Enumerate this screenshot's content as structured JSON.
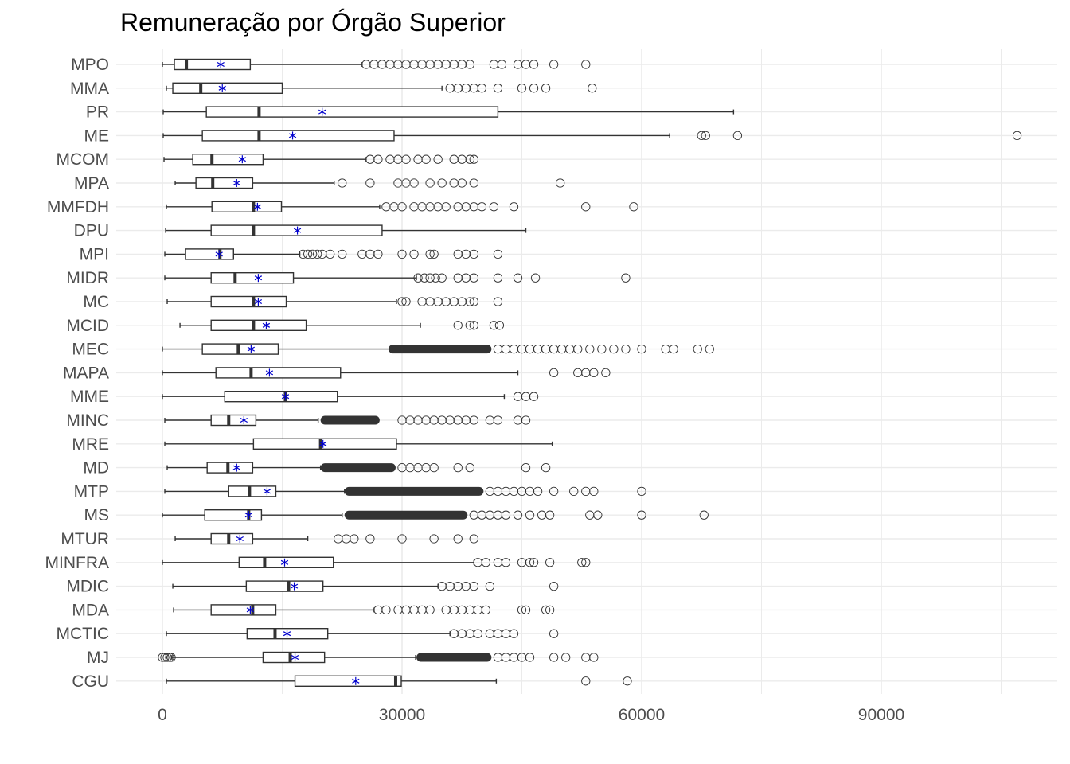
{
  "chart_data": {
    "type": "boxplot",
    "title": "Remuneração por Órgão Superior",
    "xlabel": "",
    "ylabel": "",
    "xlim": [
      -5000,
      112000
    ],
    "x_ticks": [
      0,
      30000,
      60000,
      90000
    ],
    "x_tick_labels": [
      "0",
      "30000",
      "60000",
      "90000"
    ],
    "grid": true,
    "orientation": "horizontal",
    "colors": {
      "box": "#333333",
      "mean": "#0000cd",
      "grid": "#ebebeb",
      "text": "#4d4d4d"
    },
    "categories": [
      "MPO",
      "MMA",
      "PR",
      "ME",
      "MCOM",
      "MPA",
      "MMFDH",
      "DPU",
      "MPI",
      "MIDR",
      "MC",
      "MCID",
      "MEC",
      "MAPA",
      "MME",
      "MINC",
      "MRE",
      "MD",
      "MTP",
      "MS",
      "MTUR",
      "MINFRA",
      "MDIC",
      "MDA",
      "MCTIC",
      "MJ",
      "CGU"
    ],
    "series": [
      {
        "category": "MPO",
        "min": 0,
        "q1": 1500,
        "median": 3000,
        "q3": 11000,
        "max": 25000,
        "mean": 7300,
        "outliers": [
          25500,
          26500,
          27500,
          28500,
          29500,
          30500,
          31500,
          32500,
          33500,
          34500,
          35500,
          36500,
          37500,
          38500,
          41500,
          42500,
          44500,
          45500,
          46500,
          49000,
          53000
        ]
      },
      {
        "category": "MMA",
        "min": 500,
        "q1": 1300,
        "median": 4800,
        "q3": 15000,
        "max": 35000,
        "mean": 7500,
        "outliers": [
          36000,
          37000,
          38000,
          39000,
          40000,
          42000,
          45000,
          46500,
          48000,
          53800
        ]
      },
      {
        "category": "PR",
        "min": 100,
        "q1": 5500,
        "median": 12100,
        "q3": 42000,
        "max": 71500,
        "mean": 20000,
        "outliers": []
      },
      {
        "category": "ME",
        "min": 100,
        "q1": 5000,
        "median": 12100,
        "q3": 29000,
        "max": 63500,
        "mean": 16300,
        "outliers": [
          67500,
          68000,
          72000,
          107000
        ]
      },
      {
        "category": "MCOM",
        "min": 200,
        "q1": 3800,
        "median": 6200,
        "q3": 12600,
        "max": 25500,
        "mean": 10000,
        "outliers": [
          26000,
          27000,
          28500,
          29500,
          30500,
          32000,
          33000,
          34500,
          36500,
          37500,
          38500,
          39000
        ]
      },
      {
        "category": "MPA",
        "min": 1600,
        "q1": 4200,
        "median": 6300,
        "q3": 11300,
        "max": 21500,
        "mean": 9300,
        "outliers": [
          22500,
          26000,
          29500,
          30500,
          31500,
          33500,
          35000,
          36500,
          37500,
          39000,
          49800
        ]
      },
      {
        "category": "MMFDH",
        "min": 500,
        "q1": 6200,
        "median": 11400,
        "q3": 14900,
        "max": 27200,
        "mean": 11900,
        "outliers": [
          28000,
          29000,
          30000,
          31500,
          32500,
          33500,
          34500,
          35500,
          37000,
          38000,
          39000,
          40000,
          41500,
          44000,
          53000,
          59000
        ]
      },
      {
        "category": "DPU",
        "min": 400,
        "q1": 6100,
        "median": 11400,
        "q3": 27500,
        "max": 45500,
        "mean": 16900,
        "outliers": []
      },
      {
        "category": "MPI",
        "min": 300,
        "q1": 2900,
        "median": 7200,
        "q3": 8900,
        "max": 17200,
        "mean": 7100,
        "outliers": [
          17600,
          18200,
          18800,
          19400,
          20000,
          21000,
          22500,
          25000,
          26000,
          27000,
          30000,
          31500,
          33500,
          34000,
          37000,
          38000,
          39000,
          42000
        ]
      },
      {
        "category": "MIDR",
        "min": 300,
        "q1": 6100,
        "median": 9100,
        "q3": 16400,
        "max": 31800,
        "mean": 12000,
        "outliers": [
          32000,
          32800,
          33500,
          34200,
          35000,
          37000,
          38000,
          39000,
          42000,
          44500,
          46700,
          58000
        ]
      },
      {
        "category": "MC",
        "min": 600,
        "q1": 6100,
        "median": 11400,
        "q3": 15500,
        "max": 29300,
        "mean": 12000,
        "outliers": [
          30000,
          30500,
          32500,
          33500,
          34500,
          35500,
          36500,
          37500,
          38500,
          39000,
          42000
        ]
      },
      {
        "category": "MCID",
        "min": 2200,
        "q1": 6100,
        "median": 11400,
        "q3": 18000,
        "max": 32300,
        "mean": 13000,
        "outliers": [
          37000,
          38500,
          39000,
          41500,
          42200
        ]
      },
      {
        "category": "MEC",
        "min": 0,
        "q1": 5000,
        "median": 9500,
        "q3": 14500,
        "max": 28500,
        "mean": 11100,
        "dense_range": [
          28500,
          41000
        ],
        "outliers": [
          42000,
          43000,
          44000,
          45000,
          46000,
          47000,
          48000,
          49000,
          50000,
          51000,
          52000,
          53500,
          55000,
          56500,
          58000,
          60000,
          63000,
          64000,
          67000,
          68500
        ]
      },
      {
        "category": "MAPA",
        "min": 0,
        "q1": 6700,
        "median": 11100,
        "q3": 22300,
        "max": 44500,
        "mean": 13400,
        "outliers": [
          49000,
          52000,
          53000,
          54000,
          55500
        ]
      },
      {
        "category": "MME",
        "min": 0,
        "q1": 7800,
        "median": 15400,
        "q3": 21900,
        "max": 42800,
        "mean": 15400,
        "outliers": [
          44500,
          45500,
          46500
        ]
      },
      {
        "category": "MINC",
        "min": 300,
        "q1": 6100,
        "median": 8300,
        "q3": 11700,
        "max": 19500,
        "mean": 10200,
        "dense_range": [
          20000,
          27000
        ],
        "outliers": [
          30000,
          31000,
          32000,
          33000,
          34000,
          35000,
          36000,
          37000,
          38000,
          39000,
          41000,
          42000,
          44500,
          45500
        ]
      },
      {
        "category": "MRE",
        "min": 300,
        "q1": 11400,
        "median": 19800,
        "q3": 29300,
        "max": 48800,
        "mean": 20100,
        "outliers": []
      },
      {
        "category": "MD",
        "min": 600,
        "q1": 5600,
        "median": 8200,
        "q3": 11300,
        "max": 19800,
        "mean": 9300,
        "dense_range": [
          20000,
          29000
        ],
        "outliers": [
          30000,
          31000,
          32000,
          33000,
          34000,
          37000,
          38500,
          45500,
          48000
        ]
      },
      {
        "category": "MTP",
        "min": 300,
        "q1": 8300,
        "median": 10900,
        "q3": 14200,
        "max": 22800,
        "mean": 13100,
        "dense_range": [
          23000,
          40000
        ],
        "outliers": [
          41000,
          42000,
          43000,
          44000,
          45000,
          46000,
          47000,
          49000,
          51500,
          53000,
          54000,
          60000
        ]
      },
      {
        "category": "MS",
        "min": 0,
        "q1": 5300,
        "median": 10800,
        "q3": 12400,
        "max": 22500,
        "mean": 10800,
        "dense_range": [
          23000,
          38000
        ],
        "outliers": [
          39000,
          40000,
          41000,
          42000,
          43000,
          44500,
          46000,
          47500,
          48500,
          53500,
          54500,
          60000,
          67800
        ]
      },
      {
        "category": "MTUR",
        "min": 1600,
        "q1": 6100,
        "median": 8300,
        "q3": 11300,
        "max": 18200,
        "mean": 9700,
        "outliers": [
          22000,
          23000,
          24000,
          26000,
          30000,
          34000,
          37000,
          39000
        ]
      },
      {
        "category": "MINFRA",
        "min": 0,
        "q1": 9600,
        "median": 12800,
        "q3": 21400,
        "max": 39000,
        "mean": 15300,
        "outliers": [
          39500,
          40500,
          42000,
          43000,
          45000,
          46000,
          46500,
          48500,
          52500,
          53000
        ]
      },
      {
        "category": "MDIC",
        "min": 1300,
        "q1": 10500,
        "median": 15800,
        "q3": 20100,
        "max": 34500,
        "mean": 16500,
        "outliers": [
          35000,
          36000,
          37000,
          38000,
          39000,
          41000,
          49000
        ]
      },
      {
        "category": "MDA",
        "min": 1400,
        "q1": 6100,
        "median": 11300,
        "q3": 14200,
        "max": 26500,
        "mean": 11000,
        "outliers": [
          27000,
          28000,
          29500,
          30500,
          31500,
          32500,
          33500,
          35500,
          36500,
          37500,
          38500,
          39500,
          40500,
          45000,
          45500,
          48000,
          48500
        ]
      },
      {
        "category": "MCTIC",
        "min": 500,
        "q1": 10600,
        "median": 14100,
        "q3": 20700,
        "max": 36000,
        "mean": 15600,
        "outliers": [
          36500,
          37500,
          38500,
          39500,
          41000,
          42000,
          43000,
          44000,
          49000
        ]
      },
      {
        "category": "MJ",
        "min": 1200,
        "q1": 12600,
        "median": 16000,
        "q3": 20300,
        "max": 31700,
        "mean": 16600,
        "low_outliers": [
          0,
          300,
          600,
          900,
          1100
        ],
        "dense_range": [
          32000,
          41000
        ],
        "outliers": [
          42000,
          43000,
          44000,
          45000,
          46000,
          49000,
          50500,
          53000,
          54000
        ]
      },
      {
        "category": "CGU",
        "min": 500,
        "q1": 16600,
        "median": 29200,
        "q3": 29900,
        "max": 41800,
        "mean": 24200,
        "outliers": [
          53000,
          58200
        ]
      }
    ]
  }
}
